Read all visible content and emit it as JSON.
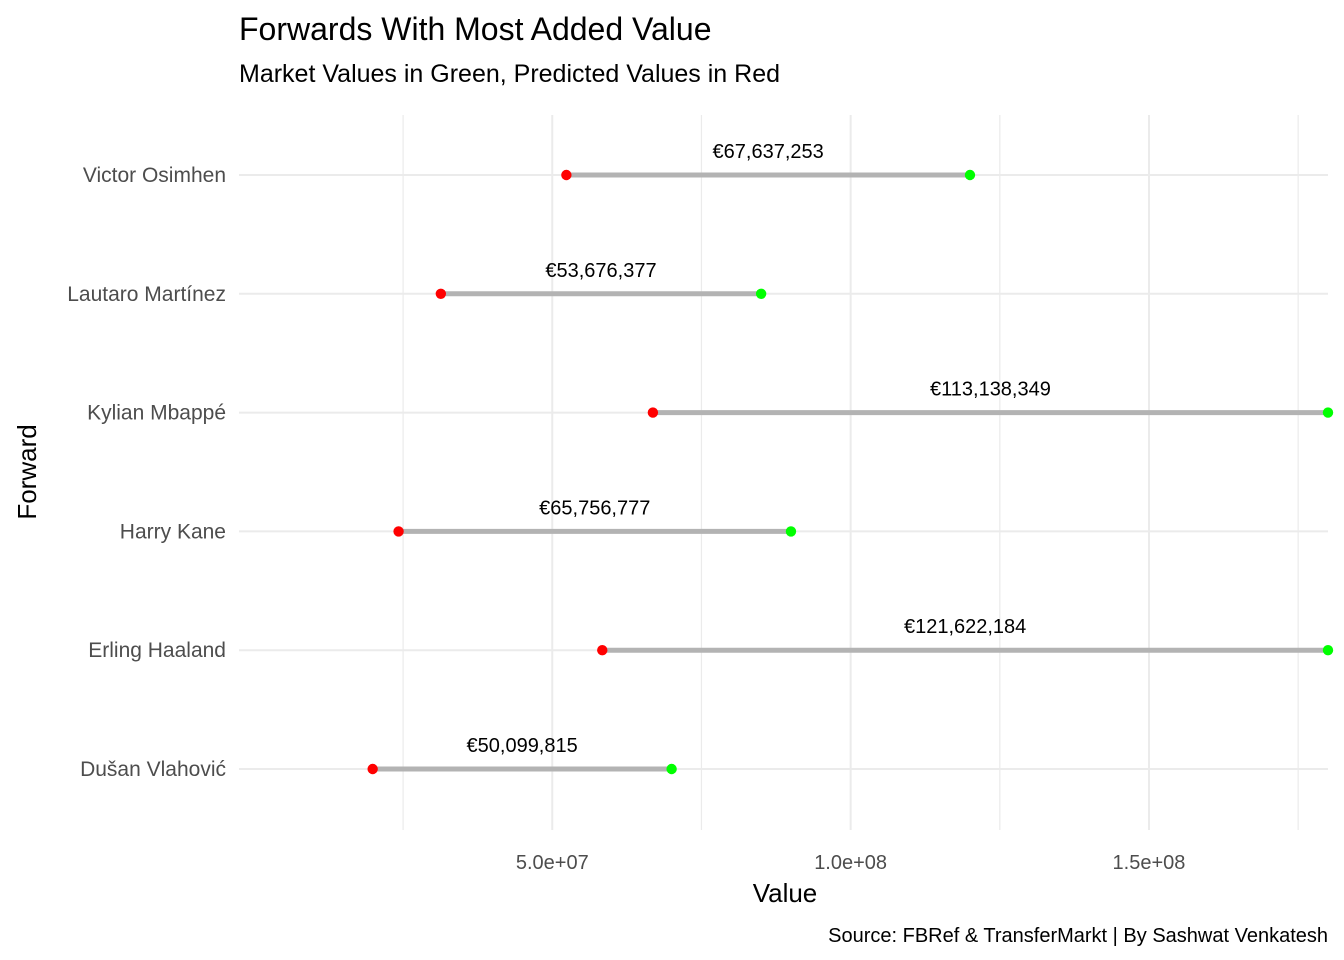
{
  "chart_data": {
    "type": "dumbbell",
    "title": "Forwards With Most Added Value",
    "subtitle": "Market Values in Green, Predicted Values in Red",
    "xlabel": "Value",
    "ylabel": "Forward",
    "caption": "Source: FBRef & TransferMarkt | By Sashwat Venkatesh",
    "xlim": [
      -2500000,
      180000000
    ],
    "x_ticks": [
      {
        "value": 50000000,
        "label": "5.0e+07"
      },
      {
        "value": 100000000,
        "label": "1.0e+08"
      },
      {
        "value": 150000000,
        "label": "1.5e+08"
      }
    ],
    "x_minor_ticks": [
      25000000,
      75000000,
      125000000,
      175000000
    ],
    "grid": true,
    "colors": {
      "market": "#00FF00",
      "predicted": "#FF0000",
      "segment": "#B3B3B3",
      "grid": "#EBEBEB"
    },
    "categories": [
      "Victor Osimhen",
      "Lautaro Martínez",
      "Kylian Mbappé",
      "Harry Kane",
      "Erling Haaland",
      "Dušan Vlahović"
    ],
    "points": [
      {
        "name": "Victor Osimhen",
        "predicted": 52362747,
        "market": 120000000,
        "label": "€67,637,253"
      },
      {
        "name": "Lautaro Martínez",
        "predicted": 31323623,
        "market": 85000000,
        "label": "€53,676,377"
      },
      {
        "name": "Kylian Mbappé",
        "predicted": 66861651,
        "market": 180000000,
        "label": "€113,138,349"
      },
      {
        "name": "Harry Kane",
        "predicted": 24243223,
        "market": 90000000,
        "label": "€65,756,777"
      },
      {
        "name": "Erling Haaland",
        "predicted": 58377816,
        "market": 180000000,
        "label": "€121,622,184"
      },
      {
        "name": "Dušan Vlahović",
        "predicted": 19900185,
        "market": 70000000,
        "label": "€50,099,815"
      }
    ]
  }
}
